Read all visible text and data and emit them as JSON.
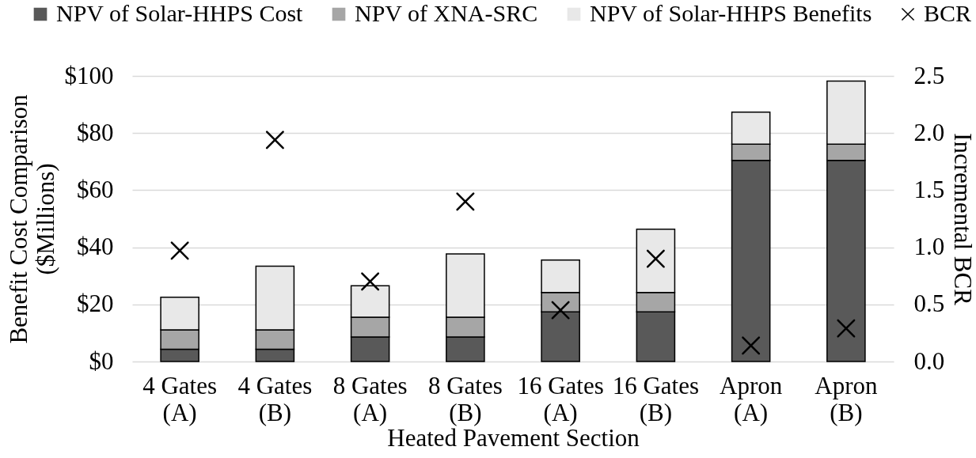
{
  "chart_data": {
    "type": "bar",
    "stacked": true,
    "xlabel": "Heated Pavement Section",
    "ylabel": "Benefit Cost Comparison ($Millions)",
    "y2label": "Incremental BCR",
    "categories": [
      "4 Gates (A)",
      "4 Gates (B)",
      "8 Gates (A)",
      "8 Gates (B)",
      "16 Gates (A)",
      "16 Gates (B)",
      "Apron (A)",
      "Apron (B)"
    ],
    "series": [
      {
        "name": "NPV of Solar-HHPS Cost",
        "color": "#595959",
        "values": [
          4.3,
          4.3,
          8.6,
          8.6,
          17.4,
          17.4,
          70.4,
          70.4
        ]
      },
      {
        "name": "NPV of XNA-SRC",
        "color": "#a6a6a6",
        "values": [
          6.8,
          6.8,
          6.9,
          6.9,
          6.8,
          6.8,
          5.7,
          5.7
        ]
      },
      {
        "name": "NPV of Solar-HHPS Benefits",
        "color": "#e8e8e8",
        "values": [
          11.4,
          22.3,
          11.0,
          22.2,
          11.3,
          22.1,
          11.2,
          22.1
        ]
      },
      {
        "name": "BCR",
        "type": "scatter",
        "axis": "y2",
        "color": "#000000",
        "values": [
          0.97,
          1.94,
          0.7,
          1.4,
          0.45,
          0.9,
          0.14,
          0.29
        ]
      }
    ],
    "ylim": [
      0,
      100
    ],
    "yticks": [
      {
        "value": 0,
        "label": "$0"
      },
      {
        "value": 20,
        "label": "$20"
      },
      {
        "value": 40,
        "label": "$40"
      },
      {
        "value": 60,
        "label": "$60"
      },
      {
        "value": 80,
        "label": "$80"
      },
      {
        "value": 100,
        "label": "$100"
      }
    ],
    "y2lim": [
      0,
      2.5
    ],
    "y2ticks": [
      {
        "value": 0,
        "label": "0.0"
      },
      0.5,
      {
        "value": 1,
        "label": "1.0"
      },
      1.5,
      {
        "value": 2,
        "label": "2.0"
      },
      2.5
    ],
    "grid": "y",
    "legend": "top",
    "marker": "cross"
  }
}
